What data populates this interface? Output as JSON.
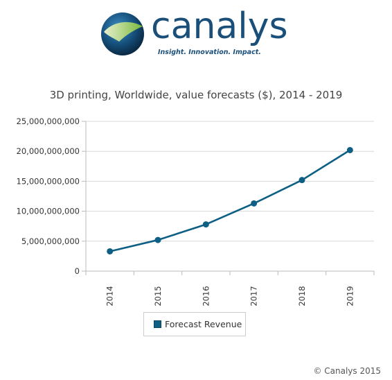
{
  "brand": {
    "name": "canalys",
    "tagline": "Insight. Innovation. Impact."
  },
  "copyright": "© Canalys 2015",
  "colors": {
    "series": "#0e5f84",
    "grid": "#d8d8d8",
    "brand": "#1a4f7a"
  },
  "chart_data": {
    "type": "line",
    "title": "3D printing, Worldwide, value forecasts ($), 2014 - 2019",
    "xlabel": "",
    "ylabel": "",
    "categories": [
      "2014",
      "2015",
      "2016",
      "2017",
      "2018",
      "2019"
    ],
    "series": [
      {
        "name": "Forecast Revenue",
        "values": [
          3300000000,
          5200000000,
          7800000000,
          11300000000,
          15200000000,
          20200000000
        ]
      }
    ],
    "ylim": [
      0,
      25000000000
    ],
    "yticks": [
      0,
      5000000000,
      10000000000,
      15000000000,
      20000000000,
      25000000000
    ],
    "ytick_labels": [
      "0",
      "5,000,000,000",
      "10,000,000,000",
      "15,000,000,000",
      "20,000,000,000",
      "25,000,000,000"
    ],
    "grid": true,
    "legend": "bottom-center"
  }
}
